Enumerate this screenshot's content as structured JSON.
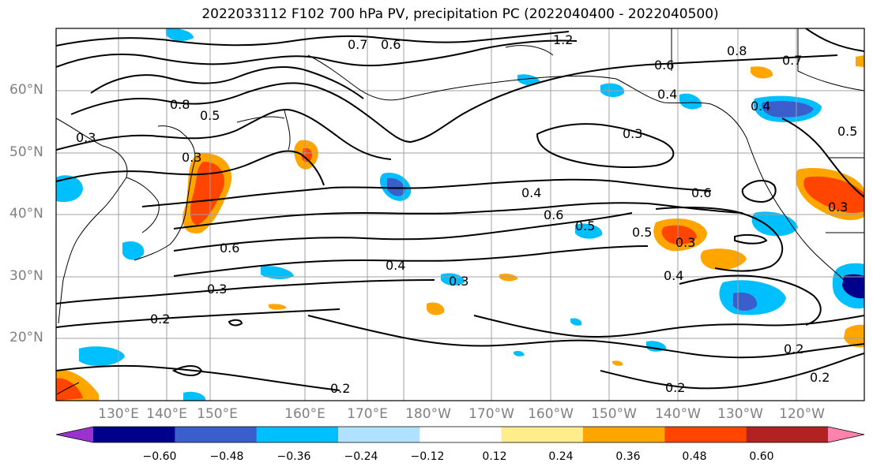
{
  "title": "2022033112 F102 700 hPa PV, precipitation PC (2022040400 - 2022040500)",
  "lat_labels": [
    "60°N",
    "50°N",
    "40°N",
    "30°N",
    "20°N"
  ],
  "lon_labels": [
    "130°E",
    "140°E",
    "150°E",
    "160°E",
    "170°E",
    "180°W",
    "170°W",
    "160°W",
    "150°W",
    "140°W",
    "130°W",
    "120°W"
  ],
  "colorbar": {
    "ticks": [
      "−0.60",
      "−0.48",
      "−0.36",
      "−0.24",
      "−0.12",
      "0.12",
      "0.24",
      "0.36",
      "0.48",
      "0.60"
    ],
    "colors": [
      "#9a32cd",
      "#00008b",
      "#3a5fcd",
      "#00bfff",
      "#b0e2ff",
      "#ffffff",
      "#ffec8b",
      "#ffa500",
      "#ff4500",
      "#b22222",
      "#ff82ab"
    ]
  },
  "contour_labels": [
    "0.7",
    "0.6",
    "1.2",
    "0.8",
    "0.7",
    "0.6",
    "0.4",
    "0.4",
    "0.5",
    "0.8",
    "0.5",
    "0.3",
    "0.3",
    "0.3",
    "0.4",
    "0.6",
    "0.6",
    "0.5",
    "0.5",
    "0.3",
    "0.3",
    "0.6",
    "0.4",
    "0.3",
    "0.3",
    "0.4",
    "0.2",
    "0.2",
    "0.2",
    "0.2",
    "0.2"
  ]
}
